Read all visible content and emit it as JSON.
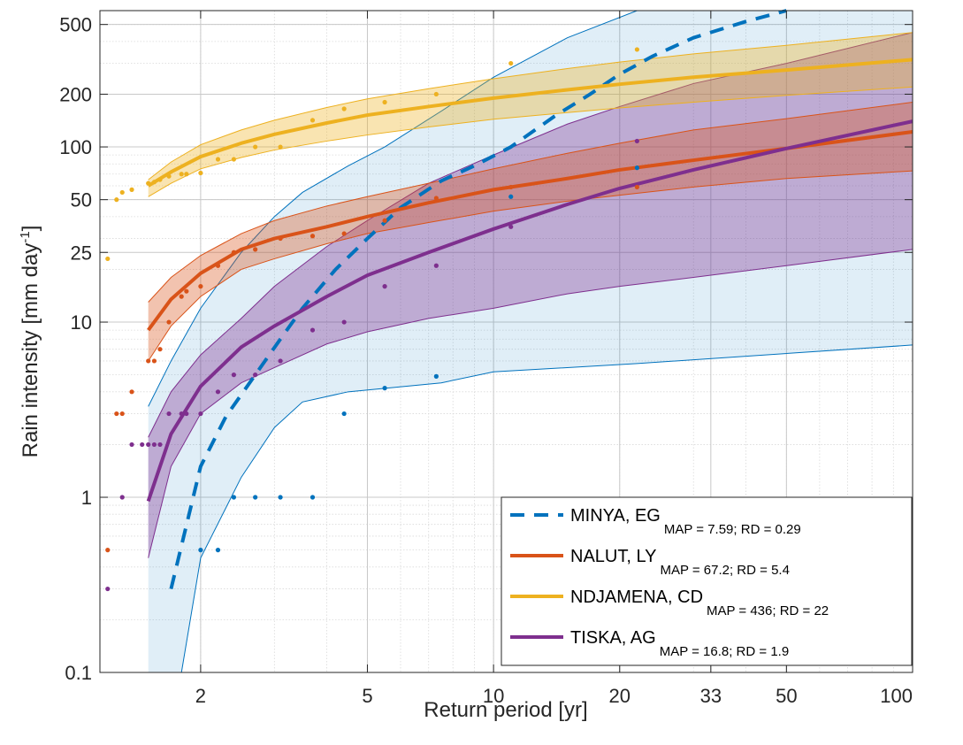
{
  "chart_data": {
    "type": "line",
    "xlabel": "Return period [yr]",
    "ylabel": "Rain intensity [mm day",
    "ylabel_sup": "-1",
    "ylabel_end": "]",
    "xscale": "log",
    "yscale": "log",
    "xlim": [
      1.15,
      100
    ],
    "ylim": [
      0.1,
      600
    ],
    "xticks": [
      2,
      5,
      10,
      20,
      33,
      50,
      100
    ],
    "yticks": [
      0.1,
      1,
      10,
      25,
      50,
      100,
      200,
      500
    ],
    "grid": true,
    "legend_position": "bottom-right",
    "colors": {
      "MINYA": "#0072BD",
      "NALUT": "#D95319",
      "NDJAMENA": "#EDB120",
      "TISKA": "#7E2F8E"
    },
    "series": [
      {
        "name": "MINYA, EG",
        "stats": "MAP = 7.59; RD = 0.29",
        "key": "MINYA",
        "line_style": "dashed",
        "curve": {
          "x": [
            1.5,
            1.7,
            2.0,
            2.3,
            2.7,
            3.1,
            3.5,
            4.2,
            5.0,
            6.0,
            7.5,
            9.0,
            11,
            14,
            17,
            20,
            24,
            30,
            40,
            50
          ],
          "y": [
            0.09,
            0.3,
            1.5,
            2.9,
            5.0,
            8.0,
            12,
            20,
            30,
            45,
            64,
            78,
            100,
            150,
            200,
            260,
            330,
            420,
            520,
            600
          ]
        },
        "upper": {
          "x": [
            1.5,
            1.7,
            2.0,
            2.5,
            3.0,
            3.5,
            4.5,
            5.5,
            7.5,
            10,
            15,
            22
          ],
          "y": [
            3.3,
            6.0,
            12,
            25,
            40,
            55,
            78,
            100,
            160,
            250,
            420,
            600
          ]
        },
        "lower": {
          "x": [
            1.5,
            1.8,
            2.0,
            2.5,
            3.0,
            3.5,
            4.5,
            7.5,
            10,
            22,
            100
          ],
          "y": [
            0.1,
            0.1,
            0.45,
            1.3,
            2.5,
            3.5,
            4.0,
            4.5,
            5.2,
            5.8,
            7.4
          ]
        },
        "points": {
          "x": [
            2.0,
            2.2,
            2.4,
            2.7,
            3.1,
            3.7,
            4.4,
            5.5,
            7.3,
            11,
            22
          ],
          "y": [
            0.5,
            0.5,
            1.0,
            1.0,
            1.0,
            1.0,
            3.0,
            4.2,
            4.9,
            52,
            76
          ]
        }
      },
      {
        "name": "NALUT, LY",
        "stats": "MAP = 67.2; RD = 5.4",
        "key": "NALUT",
        "line_style": "solid",
        "curve": {
          "x": [
            1.5,
            1.7,
            2.0,
            2.5,
            3.0,
            4.0,
            5.0,
            7.0,
            10,
            15,
            20,
            30,
            50,
            100
          ],
          "y": [
            9.0,
            13.5,
            19,
            26,
            30,
            35,
            40,
            48,
            57,
            66,
            74,
            84,
            98,
            122
          ]
        },
        "upper": {
          "x": [
            1.5,
            1.7,
            2.0,
            2.5,
            3.0,
            4.0,
            5.0,
            7.0,
            10,
            15,
            20,
            30,
            50,
            100
          ],
          "y": [
            13,
            18,
            24,
            32,
            38,
            46,
            52,
            62,
            75,
            92,
            105,
            125,
            145,
            180
          ]
        },
        "lower": {
          "x": [
            1.5,
            1.7,
            2.0,
            2.5,
            3.0,
            4.0,
            5.0,
            7.0,
            10,
            15,
            20,
            30,
            50,
            100
          ],
          "y": [
            6.0,
            9.5,
            14,
            20,
            23,
            28,
            32,
            37,
            43,
            49,
            53,
            59,
            66,
            73
          ]
        },
        "points": {
          "x": [
            1.2,
            1.26,
            1.3,
            1.37,
            1.5,
            1.55,
            1.6,
            1.68,
            1.8,
            1.85,
            2.0,
            2.2,
            2.4,
            2.7,
            3.1,
            3.7,
            4.4,
            5.5,
            7.3,
            11,
            22
          ],
          "y": [
            0.5,
            3.0,
            3.0,
            4.0,
            6.0,
            6.0,
            7.0,
            10,
            14,
            15,
            16,
            21,
            25,
            26,
            30,
            31,
            32,
            38,
            51,
            59,
            59
          ]
        }
      },
      {
        "name": "NDJAMENA, CD",
        "stats": "MAP = 436; RD = 22",
        "key": "NDJAMENA",
        "line_style": "solid",
        "curve": {
          "x": [
            1.5,
            1.7,
            2.0,
            2.5,
            3.0,
            4.0,
            5.0,
            7.0,
            10,
            15,
            20,
            30,
            50,
            100
          ],
          "y": [
            60,
            72,
            88,
            105,
            118,
            137,
            152,
            170,
            190,
            212,
            228,
            250,
            275,
            315
          ]
        },
        "upper": {
          "x": [
            1.5,
            1.7,
            2.0,
            2.5,
            3.0,
            4.0,
            5.0,
            7.0,
            10,
            15,
            20,
            30,
            50,
            100
          ],
          "y": [
            65,
            82,
            103,
            125,
            142,
            168,
            188,
            215,
            245,
            280,
            305,
            340,
            380,
            450
          ]
        },
        "lower": {
          "x": [
            1.5,
            1.7,
            2.0,
            2.5,
            3.0,
            4.0,
            5.0,
            7.0,
            10,
            15,
            20,
            30,
            50,
            100
          ],
          "y": [
            52,
            62,
            75,
            87,
            96,
            108,
            117,
            130,
            144,
            157,
            167,
            180,
            197,
            220
          ]
        },
        "points": {
          "x": [
            1.2,
            1.26,
            1.3,
            1.37,
            1.5,
            1.55,
            1.6,
            1.68,
            1.8,
            1.85,
            2.0,
            2.2,
            2.4,
            2.7,
            3.1,
            3.7,
            4.4,
            5.5,
            7.3,
            11,
            22
          ],
          "y": [
            23,
            50,
            55,
            57,
            62,
            63,
            65,
            68,
            70,
            70,
            71,
            85,
            85,
            100,
            100,
            142,
            165,
            180,
            200,
            300,
            360
          ]
        }
      },
      {
        "name": "TISKA, AG",
        "stats": "MAP = 16.8; RD = 1.9",
        "key": "TISKA",
        "line_style": "solid",
        "curve": {
          "x": [
            1.5,
            1.7,
            2.0,
            2.5,
            3.0,
            4.0,
            5.0,
            7.0,
            10,
            15,
            20,
            30,
            50,
            100
          ],
          "y": [
            0.95,
            2.3,
            4.3,
            7.2,
            9.5,
            14,
            18.5,
            25,
            34,
            47,
            58,
            74,
            98,
            140
          ]
        },
        "upper": {
          "x": [
            1.5,
            1.7,
            2.0,
            2.5,
            3.0,
            4.0,
            5.0,
            7.0,
            10,
            15,
            20,
            30,
            50,
            100
          ],
          "y": [
            2.2,
            4.0,
            6.5,
            10.5,
            16,
            27,
            38,
            62,
            90,
            135,
            170,
            230,
            300,
            450
          ]
        },
        "lower": {
          "x": [
            1.5,
            1.7,
            2.0,
            2.5,
            3.0,
            4.0,
            5.0,
            7.0,
            10,
            15,
            20,
            30,
            50,
            100
          ],
          "y": [
            0.45,
            1.5,
            3.0,
            4.5,
            5.5,
            7.5,
            8.8,
            10.5,
            12,
            14.5,
            16,
            18,
            21,
            26
          ]
        },
        "points": {
          "x": [
            1.2,
            1.3,
            1.37,
            1.45,
            1.5,
            1.55,
            1.6,
            1.68,
            1.8,
            1.85,
            2.0,
            2.2,
            2.4,
            2.7,
            3.1,
            3.7,
            4.4,
            5.5,
            7.3,
            11,
            22
          ],
          "y": [
            0.3,
            1.0,
            2.0,
            2.0,
            2.0,
            2.0,
            2.0,
            3.0,
            3.0,
            3.0,
            3.0,
            4.0,
            5.0,
            5.0,
            6.0,
            9.0,
            10,
            16,
            21,
            35,
            108
          ]
        }
      }
    ]
  }
}
